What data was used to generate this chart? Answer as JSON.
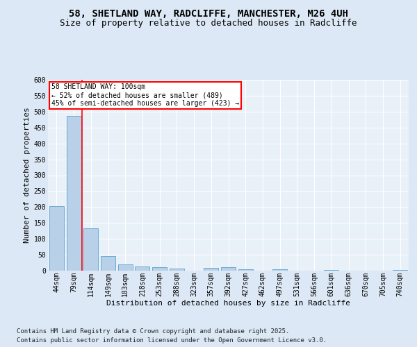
{
  "title_line1": "58, SHETLAND WAY, RADCLIFFE, MANCHESTER, M26 4UH",
  "title_line2": "Size of property relative to detached houses in Radcliffe",
  "xlabel": "Distribution of detached houses by size in Radcliffe",
  "ylabel": "Number of detached properties",
  "footer_line1": "Contains HM Land Registry data © Crown copyright and database right 2025.",
  "footer_line2": "Contains public sector information licensed under the Open Government Licence v3.0.",
  "bar_labels": [
    "44sqm",
    "79sqm",
    "114sqm",
    "149sqm",
    "183sqm",
    "218sqm",
    "253sqm",
    "288sqm",
    "323sqm",
    "357sqm",
    "392sqm",
    "427sqm",
    "462sqm",
    "497sqm",
    "531sqm",
    "566sqm",
    "601sqm",
    "636sqm",
    "670sqm",
    "705sqm",
    "740sqm"
  ],
  "bar_values": [
    203,
    487,
    134,
    46,
    20,
    13,
    12,
    6,
    0,
    9,
    10,
    5,
    0,
    5,
    0,
    0,
    3,
    0,
    0,
    0,
    3
  ],
  "bar_color": "#b8d0e8",
  "bar_edge_color": "#6aaad4",
  "vline_x": 1.5,
  "vline_color": "red",
  "annotation_text": "58 SHETLAND WAY: 100sqm\n← 52% of detached houses are smaller (489)\n45% of semi-detached houses are larger (423) →",
  "annotation_box_color": "white",
  "annotation_box_edge": "red",
  "ylim": [
    0,
    600
  ],
  "yticks": [
    0,
    50,
    100,
    150,
    200,
    250,
    300,
    350,
    400,
    450,
    500,
    550,
    600
  ],
  "bg_color": "#dce8f5",
  "plot_bg": "#e8f0f8",
  "grid_color": "white",
  "title_fontsize": 10,
  "subtitle_fontsize": 9,
  "axis_label_fontsize": 8,
  "tick_fontsize": 7,
  "footer_fontsize": 6.5
}
